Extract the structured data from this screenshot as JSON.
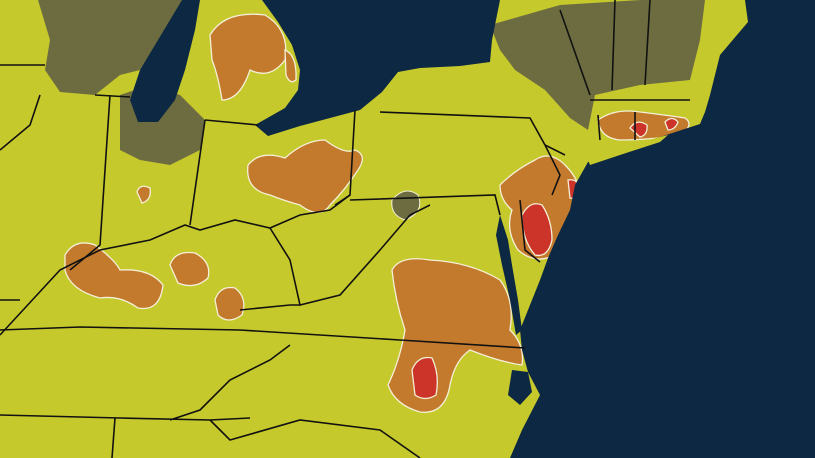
{
  "map": {
    "colors": {
      "water": "#0c2842",
      "land_base": "#c6c92c",
      "no_data": "#6d6c40",
      "moderate": "#c47a2c",
      "high": "#cc3329",
      "outline": "#f3f0d8",
      "borders": "#111111"
    },
    "levels": [
      "base",
      "moderate",
      "high",
      "no_data"
    ]
  }
}
